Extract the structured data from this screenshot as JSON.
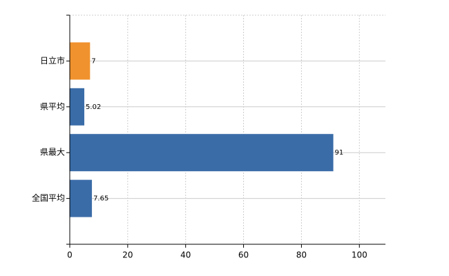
{
  "chart_data": {
    "type": "barh",
    "categories": [
      "日立市",
      "県平均",
      "県最大",
      "全国平均"
    ],
    "values": [
      7,
      5.02,
      91,
      7.65
    ],
    "colors": [
      "#f0922e",
      "#3a6ca8",
      "#3a6ca8",
      "#3a6ca8"
    ],
    "xlim": [
      0,
      109
    ],
    "xticks": [
      0,
      20,
      40,
      60,
      80,
      100
    ],
    "grid": true
  }
}
